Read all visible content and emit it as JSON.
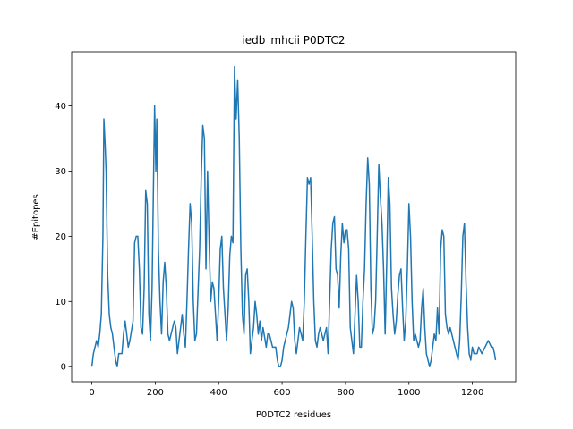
{
  "chart_data": {
    "type": "line",
    "title": "iedb_mhcii P0DTC2",
    "xlabel": "P0DTC2 residues",
    "ylabel": "#Epitopes",
    "color": "#1f77b4",
    "x": [
      0,
      5,
      10,
      15,
      20,
      25,
      30,
      35,
      38,
      42,
      45,
      50,
      55,
      60,
      65,
      70,
      75,
      80,
      85,
      95,
      100,
      105,
      110,
      115,
      120,
      130,
      135,
      140,
      145,
      150,
      155,
      160,
      165,
      170,
      175,
      180,
      185,
      190,
      195,
      198,
      202,
      205,
      210,
      215,
      220,
      225,
      230,
      235,
      240,
      245,
      250,
      260,
      265,
      270,
      275,
      280,
      285,
      290,
      295,
      300,
      305,
      310,
      315,
      320,
      325,
      330,
      340,
      345,
      350,
      355,
      360,
      365,
      370,
      375,
      380,
      385,
      390,
      395,
      400,
      405,
      410,
      415,
      420,
      425,
      430,
      435,
      440,
      445,
      450,
      455,
      460,
      465,
      470,
      475,
      480,
      485,
      490,
      495,
      500,
      505,
      510,
      515,
      520,
      525,
      530,
      535,
      540,
      550,
      555,
      560,
      570,
      580,
      585,
      590,
      595,
      600,
      605,
      610,
      615,
      620,
      625,
      630,
      635,
      640,
      645,
      650,
      655,
      660,
      665,
      670,
      675,
      680,
      685,
      690,
      695,
      700,
      705,
      710,
      715,
      720,
      725,
      730,
      740,
      745,
      750,
      755,
      760,
      765,
      770,
      775,
      780,
      785,
      790,
      795,
      800,
      805,
      810,
      815,
      820,
      825,
      830,
      835,
      840,
      845,
      850,
      855,
      860,
      865,
      870,
      875,
      880,
      885,
      890,
      895,
      900,
      905,
      910,
      915,
      920,
      925,
      930,
      935,
      940,
      945,
      950,
      955,
      960,
      965,
      970,
      975,
      980,
      985,
      990,
      995,
      1000,
      1005,
      1010,
      1015,
      1020,
      1025,
      1030,
      1035,
      1040,
      1045,
      1050,
      1055,
      1060,
      1065,
      1070,
      1075,
      1080,
      1085,
      1090,
      1095,
      1100,
      1105,
      1110,
      1115,
      1120,
      1125,
      1130,
      1135,
      1140,
      1145,
      1150,
      1155,
      1160,
      1165,
      1170,
      1175,
      1180,
      1185,
      1190,
      1195,
      1200,
      1205,
      1210,
      1215,
      1220,
      1230,
      1240,
      1250,
      1260,
      1265,
      1270,
      1273
    ],
    "values": [
      0,
      2,
      3,
      4,
      3,
      5,
      8,
      20,
      38,
      34,
      30,
      14,
      8,
      6,
      5,
      3,
      1,
      0,
      2,
      2,
      5,
      7,
      5,
      3,
      4,
      7,
      19,
      20,
      20,
      15,
      6,
      5,
      12,
      27,
      25,
      8,
      4,
      12,
      30,
      40,
      30,
      38,
      18,
      10,
      5,
      13,
      16,
      12,
      5,
      4,
      5,
      7,
      6,
      2,
      4,
      6,
      8,
      5,
      3,
      10,
      18,
      25,
      22,
      10,
      4,
      5,
      18,
      29,
      37,
      35,
      15,
      30,
      19,
      10,
      13,
      12,
      8,
      4,
      10,
      18,
      20,
      12,
      8,
      4,
      9,
      17,
      20,
      19,
      46,
      38,
      44,
      35,
      18,
      8,
      5,
      14,
      15,
      10,
      2,
      4,
      6,
      10,
      8,
      5,
      7,
      4,
      6,
      3,
      5,
      5,
      3,
      3,
      1,
      0,
      0,
      1,
      3,
      4,
      5,
      6,
      8,
      10,
      9,
      4,
      2,
      4,
      6,
      5,
      4,
      10,
      20,
      29,
      28,
      29,
      20,
      10,
      4,
      3,
      5,
      6,
      5,
      4,
      6,
      2,
      10,
      18,
      22,
      23,
      15,
      14,
      9,
      17,
      22,
      19,
      21,
      21,
      18,
      6,
      4,
      2,
      8,
      14,
      10,
      3,
      3,
      10,
      15,
      25,
      32,
      28,
      12,
      5,
      6,
      10,
      20,
      31,
      26,
      22,
      15,
      5,
      16,
      29,
      25,
      12,
      8,
      5,
      7,
      11,
      14,
      15,
      9,
      4,
      7,
      15,
      25,
      20,
      10,
      4,
      5,
      4,
      3,
      4,
      9,
      12,
      6,
      2,
      1,
      0,
      1,
      3,
      5,
      4,
      9,
      5,
      18,
      21,
      20,
      8,
      6,
      5,
      6,
      5,
      4,
      3,
      2,
      1,
      4,
      11,
      20,
      22,
      13,
      6,
      2,
      1,
      3,
      2,
      2,
      2,
      3,
      2,
      3,
      4,
      3,
      3,
      2,
      1
    ],
    "xlim": [
      -63.65,
      1336.65
    ],
    "ylim": [
      -2.3,
      48.3
    ],
    "xticks": [
      0,
      200,
      400,
      600,
      800,
      1000,
      1200
    ],
    "yticks": [
      0,
      10,
      20,
      30,
      40
    ]
  }
}
